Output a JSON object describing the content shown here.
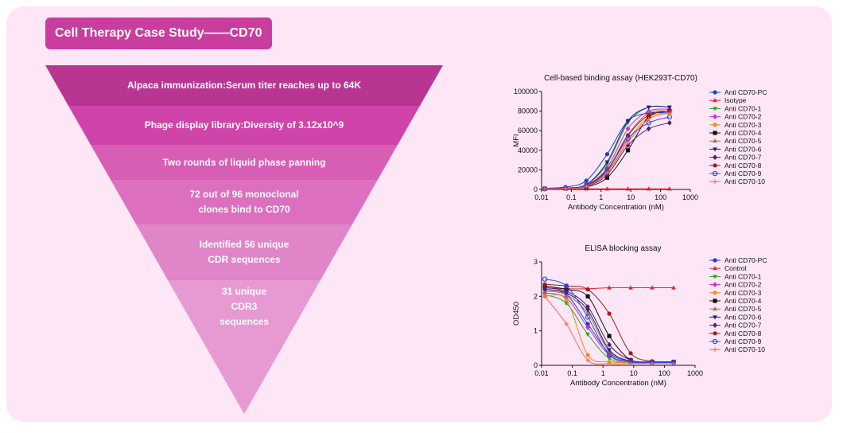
{
  "title": "Cell Therapy Case Study——CD70",
  "funnel": {
    "steps": [
      {
        "label": "Alpaca immunization:Serum titer reaches up to 64K"
      },
      {
        "label": "Phage display library:Diversity of 3.12x10^9"
      },
      {
        "label": "Two rounds of liquid phase panning"
      },
      {
        "label": "72 out of 96 monoclonal clones bind to CD70"
      },
      {
        "label": "Identified 56 unique CDR sequences"
      },
      {
        "label": "31 unique CDR3 sequences"
      }
    ],
    "colors": [
      "#b83591",
      "#cf44a8",
      "#d85db5",
      "#dc70bf",
      "#e085c8",
      "#e79ad2"
    ]
  },
  "chart_data": [
    {
      "type": "scatter",
      "title": "Cell-based binding assay (HEK293T-CD70)",
      "xlabel": "Antibody Concentration (nM)",
      "ylabel": "MFI",
      "xscale": "log",
      "xlim": [
        0.01,
        1000
      ],
      "ylim": [
        0,
        100000
      ],
      "xticks": [
        "0.01",
        "0.1",
        "1",
        "10",
        "100",
        "1000"
      ],
      "yticks": [
        "0",
        "20000",
        "40000",
        "60000",
        "80000",
        "100000"
      ],
      "x": [
        0.0128,
        0.064,
        0.32,
        1.6,
        8,
        40,
        200
      ],
      "legend_position": "right",
      "series": [
        {
          "name": "Anti CD70-PC",
          "color": "#1a3be0",
          "marker": "circle",
          "values": [
            1200,
            2500,
            9000,
            36000,
            70000,
            78000,
            78000
          ]
        },
        {
          "name": "Isotype",
          "color": "#e8222a",
          "marker": "triangle-up",
          "values": [
            600,
            600,
            600,
            600,
            600,
            600,
            600
          ]
        },
        {
          "name": "Anti CD70-1",
          "color": "#22aa22",
          "marker": "triangle-down",
          "values": [
            800,
            1500,
            5000,
            26000,
            68000,
            84000,
            84000
          ]
        },
        {
          "name": "Anti CD70-2",
          "color": "#c82fd4",
          "marker": "diamond",
          "values": [
            800,
            1400,
            4500,
            22000,
            62000,
            80000,
            82000
          ]
        },
        {
          "name": "Anti CD70-3",
          "color": "#f28a20",
          "marker": "circle",
          "values": [
            700,
            1200,
            3500,
            18000,
            50000,
            74000,
            78000
          ]
        },
        {
          "name": "Anti CD70-4",
          "color": "#111111",
          "marker": "square",
          "values": [
            600,
            1000,
            2500,
            12000,
            40000,
            74000,
            80000
          ]
        },
        {
          "name": "Anti CD70-5",
          "color": "#9a7a3a",
          "marker": "triangle-up",
          "values": [
            700,
            1300,
            4000,
            20000,
            56000,
            78000,
            80000
          ]
        },
        {
          "name": "Anti CD70-6",
          "color": "#1a237e",
          "marker": "triangle-down",
          "values": [
            800,
            1500,
            5000,
            28000,
            70000,
            84000,
            84000
          ]
        },
        {
          "name": "Anti CD70-7",
          "color": "#5a1a6e",
          "marker": "diamond",
          "values": [
            600,
            1100,
            3000,
            15000,
            45000,
            62000,
            68000
          ]
        },
        {
          "name": "Anti CD70-8",
          "color": "#a01c1c",
          "marker": "circle",
          "values": [
            700,
            1200,
            3500,
            19000,
            55000,
            76000,
            80000
          ]
        },
        {
          "name": "Anti CD70-9",
          "color": "#2d4ee0",
          "marker": "open-circle",
          "values": [
            700,
            1300,
            4000,
            20000,
            52000,
            68000,
            74000
          ]
        },
        {
          "name": "Anti CD70-10",
          "color": "#ff6a55",
          "marker": "tick",
          "values": [
            600,
            1000,
            3000,
            17000,
            48000,
            72000,
            78000
          ]
        }
      ]
    },
    {
      "type": "scatter",
      "title": "ELISA blocking assay",
      "xlabel": "Antibody Concentration (nM)",
      "ylabel": "OD450",
      "xscale": "log",
      "xlim": [
        0.01,
        1000
      ],
      "ylim": [
        0,
        3
      ],
      "xticks": [
        "0.01",
        "0.1",
        "1",
        "10",
        "100",
        "1000"
      ],
      "yticks": [
        "0",
        "1",
        "2",
        "3"
      ],
      "x": [
        0.0128,
        0.064,
        0.32,
        1.6,
        8,
        40,
        200
      ],
      "legend_position": "right",
      "series": [
        {
          "name": "Anti CD70-PC",
          "color": "#1a3be0",
          "marker": "circle",
          "values": [
            2.2,
            2.05,
            1.2,
            0.35,
            0.12,
            0.1,
            0.1
          ]
        },
        {
          "name": "Control",
          "color": "#e8222a",
          "marker": "triangle-up",
          "values": [
            2.25,
            2.22,
            2.22,
            2.25,
            2.25,
            2.25,
            2.25
          ]
        },
        {
          "name": "Anti CD70-1",
          "color": "#22aa22",
          "marker": "triangle-down",
          "values": [
            2.05,
            1.8,
            0.9,
            0.2,
            0.08,
            0.08,
            0.08
          ]
        },
        {
          "name": "Anti CD70-2",
          "color": "#c82fd4",
          "marker": "diamond",
          "values": [
            2.1,
            1.95,
            1.1,
            0.3,
            0.1,
            0.1,
            0.1
          ]
        },
        {
          "name": "Anti CD70-3",
          "color": "#f28a20",
          "marker": "circle",
          "values": [
            2.0,
            1.9,
            0.3,
            0.1,
            0.08,
            0.08,
            0.08
          ]
        },
        {
          "name": "Anti CD70-4",
          "color": "#111111",
          "marker": "square",
          "values": [
            2.3,
            2.2,
            2.0,
            0.85,
            0.15,
            0.1,
            0.1
          ]
        },
        {
          "name": "Anti CD70-5",
          "color": "#9a7a3a",
          "marker": "triangle-up",
          "values": [
            2.15,
            2.05,
            1.5,
            0.4,
            0.12,
            0.1,
            0.1
          ]
        },
        {
          "name": "Anti CD70-6",
          "color": "#1a237e",
          "marker": "triangle-down",
          "values": [
            2.2,
            2.1,
            1.6,
            0.45,
            0.12,
            0.1,
            0.1
          ]
        },
        {
          "name": "Anti CD70-7",
          "color": "#5a1a6e",
          "marker": "diamond",
          "values": [
            2.25,
            2.15,
            1.7,
            0.6,
            0.15,
            0.1,
            0.1
          ]
        },
        {
          "name": "Anti CD70-8",
          "color": "#a01c1c",
          "marker": "circle",
          "values": [
            2.35,
            2.3,
            2.2,
            1.5,
            0.35,
            0.12,
            0.1
          ]
        },
        {
          "name": "Anti CD70-9",
          "color": "#2d4ee0",
          "marker": "open-circle",
          "values": [
            2.5,
            2.3,
            1.4,
            0.3,
            0.1,
            0.08,
            0.08
          ]
        },
        {
          "name": "Anti CD70-10",
          "color": "#ff6a55",
          "marker": "tick",
          "values": [
            2.0,
            1.2,
            0.15,
            0.05,
            0.05,
            0.05,
            0.05
          ]
        }
      ]
    }
  ]
}
